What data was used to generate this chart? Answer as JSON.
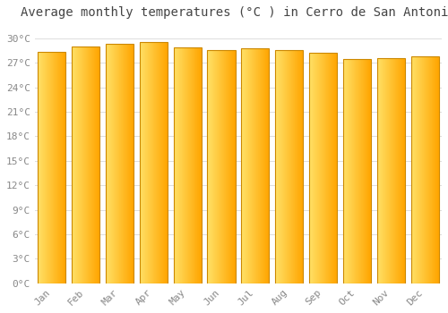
{
  "title": "Average monthly temperatures (°C ) in Cerro de San Antonio",
  "months": [
    "Jan",
    "Feb",
    "Mar",
    "Apr",
    "May",
    "Jun",
    "Jul",
    "Aug",
    "Sep",
    "Oct",
    "Nov",
    "Dec"
  ],
  "temperatures": [
    28.3,
    29.0,
    29.3,
    29.5,
    28.9,
    28.5,
    28.8,
    28.5,
    28.2,
    27.5,
    27.6,
    27.8
  ],
  "bar_color_left": "#FFE066",
  "bar_color_right": "#FFA500",
  "edge_color": "#CC8800",
  "background_color": "#ffffff",
  "grid_color": "#dddddd",
  "yticks": [
    0,
    3,
    6,
    9,
    12,
    15,
    18,
    21,
    24,
    27,
    30
  ],
  "ylim": [
    0,
    31.5
  ],
  "title_fontsize": 10,
  "tick_fontsize": 8,
  "title_font_family": "monospace",
  "tick_font_family": "monospace"
}
